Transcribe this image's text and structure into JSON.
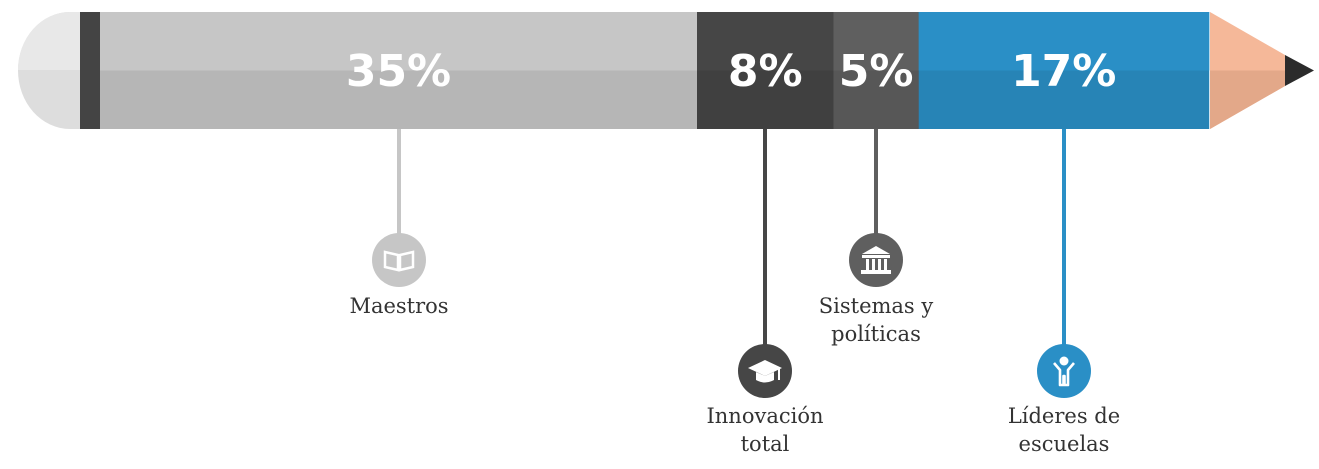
{
  "chart_data": {
    "type": "bar",
    "categories": [
      "Maestros",
      "Innovación total",
      "Sistemas y políticas",
      "Líderes de escuelas"
    ],
    "values": [
      35,
      8,
      5,
      17
    ],
    "value_labels": [
      "35%",
      "8%",
      "5%",
      "17%"
    ],
    "label_lines": [
      [
        "Maestros"
      ],
      [
        "Innovación",
        "total"
      ],
      [
        "Sistemas y",
        "políticas"
      ],
      [
        "Líderes de",
        "escuelas"
      ]
    ],
    "icons": [
      "open-book-icon",
      "graduation-cap-icon",
      "government-building-icon",
      "person-icon"
    ],
    "colors": [
      "#c6c6c6",
      "#464646",
      "#5f5f5f",
      "#2a8fc6"
    ],
    "icon_colors": [
      "#c6c6c6",
      "#464646",
      "#5f5f5f",
      "#2a8fc6"
    ]
  }
}
